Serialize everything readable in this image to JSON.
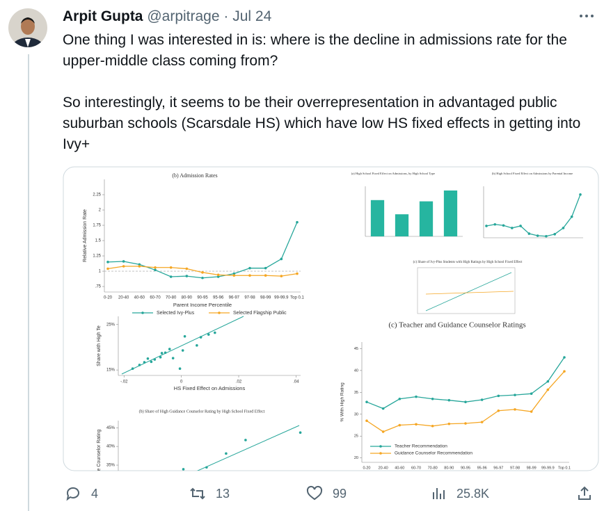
{
  "tweet": {
    "author_name": "Arpit Gupta",
    "handle": "@arpitrage",
    "separator": "·",
    "date": "Jul 24",
    "paragraphs": [
      "One thing I was interested in is: where is the decline in admissions rate for the upper-middle class coming from?",
      "So interestingly, it seems to be their overrepresentation in advantaged public suburban schools (Scarsdale HS) which have low HS fixed effects in getting into Ivy+"
    ]
  },
  "actions": {
    "replies": 4,
    "retweets": 13,
    "likes": 99,
    "views": "25.8K"
  },
  "image_texts": {
    "ivy_ratings_title": "(c) Share of Ivy-Plus Students with High Ratings by High School Fixed Effect"
  },
  "chart_data": [
    {
      "type": "line",
      "title": "(b) Admission Rates",
      "xlabel": "Parent Income Percentile",
      "ylabel": "Relative Admission Rate",
      "categories": [
        "0-20",
        "20-40",
        "40-60",
        "60-70",
        "70-80",
        "80-90",
        "90-95",
        "95-96",
        "96-97",
        "97-98",
        "98-99",
        "99-99.9",
        "Top 0.1"
      ],
      "series": [
        {
          "name": "Selected Ivy-Plus",
          "color": "#26a69a",
          "values": [
            1.15,
            1.16,
            1.11,
            1.02,
            0.91,
            0.92,
            0.89,
            0.91,
            0.96,
            1.05,
            1.05,
            1.2,
            1.8
          ]
        },
        {
          "name": "Selected Flagship Public",
          "color": "#f5a623",
          "values": [
            1.04,
            1.08,
            1.08,
            1.06,
            1.06,
            1.04,
            0.98,
            0.94,
            0.93,
            0.93,
            0.93,
            0.92,
            0.96
          ]
        }
      ],
      "ylim": [
        0.66,
        2.5
      ],
      "yticks": [
        {
          "value": 0.75,
          "label": ".75"
        },
        1,
        1.25,
        1.5,
        1.75,
        2,
        2.25
      ],
      "hline": 1,
      "legend": "bottom"
    },
    {
      "type": "scatter",
      "ylabel": "Share with High Te",
      "xlabel": "HS Fixed Effect on Admissions",
      "series": [
        {
          "color": "#26a69a",
          "x": [
            -0.017,
            -0.0146,
            -0.0129,
            -0.0117,
            -0.0105,
            -0.0093,
            -0.0073,
            -0.0068,
            -0.0056,
            -0.0041,
            -0.0029,
            -0.0005,
            0.0005,
            0.0012,
            0.0054,
            0.0068,
            0.0095,
            0.0117
          ],
          "values": [
            15.3,
            16.1,
            16.7,
            17.5,
            16.8,
            17.3,
            17.8,
            18.7,
            18.8,
            19.6,
            17.6,
            15.3,
            19.3,
            22.4,
            20.4,
            22.2,
            22.8,
            23.2
          ]
        }
      ],
      "xlim": [
        -0.022,
        0.0416
      ],
      "xticks": [
        {
          "value": -0.02,
          "label": "-.02"
        },
        0,
        {
          "value": 0.02,
          "label": ".02"
        },
        {
          "value": 0.04,
          "label": ".04"
        }
      ],
      "ylim": [
        13.8,
        26.8
      ],
      "yticks": [
        {
          "value": 15,
          "label": "15%"
        },
        {
          "value": 25,
          "label": "25%"
        }
      ]
    },
    {
      "type": "scatter",
      "title": "(b) Share of High Guidance Counselor Rating by High School Fixed Effect",
      "ylabel": "e Counselor Rating",
      "series": [
        {
          "color": "#26a69a",
          "x": [
            0.0007,
            0.0088,
            0.0156,
            0.0224,
            0.0415
          ],
          "values": [
            33.9,
            34.4,
            38.1,
            41.7,
            43.7
          ]
        }
      ],
      "xlim": [
        -0.022,
        0.0416
      ],
      "ylim": [
        31.1,
        46.9
      ],
      "yticks": [
        {
          "value": 35,
          "label": "35%"
        },
        {
          "value": 40,
          "label": "40%"
        },
        {
          "value": 45,
          "label": "45%"
        }
      ]
    },
    {
      "type": "bar",
      "title": "(a) High School Fixed Effect on Admissions, by High School Type",
      "categories": [
        null,
        null,
        null,
        null
      ],
      "values": [
        8.7,
        5.3,
        8.4,
        11.0
      ],
      "color": "#26b5a0",
      "ylim": [
        0,
        12
      ]
    },
    {
      "type": "line",
      "title": "(b) High School Fixed Effect on Admissions by Parental Income",
      "categories": [
        null,
        null,
        null,
        null,
        null,
        null,
        null,
        null,
        null,
        null,
        null,
        null
      ],
      "series": [
        {
          "color": "#26a69a",
          "values": [
            2.3,
            2.6,
            2.4,
            1.9,
            2.3,
            0.8,
            0.4,
            0.3,
            0.7,
            1.9,
            4.1,
            8.4
          ]
        }
      ],
      "ylim": [
        0,
        10
      ]
    },
    {
      "type": "line",
      "title": "(c)  Teacher and Guidance Counselor Ratings",
      "ylabel": "% With High Rating",
      "categories": [
        "0-20",
        "20-40",
        "40-60",
        "60-70",
        "70-80",
        "80-90",
        "90-95",
        "95-96",
        "96-97",
        "97-98",
        "98-99",
        "99-99.9",
        "Top 0.1"
      ],
      "series": [
        {
          "name": "Teacher Recommendation",
          "color": "#26a69a",
          "values": [
            32.8,
            31.3,
            33.5,
            34.0,
            33.5,
            33.2,
            32.8,
            33.3,
            34.2,
            34.4,
            34.7,
            37.5,
            43.0
          ]
        },
        {
          "name": "Guidance Counselor Recommendation",
          "color": "#f5a623",
          "values": [
            28.5,
            26.0,
            27.5,
            27.7,
            27.3,
            27.8,
            27.9,
            28.2,
            30.8,
            31.1,
            30.6,
            35.6,
            39.8
          ]
        }
      ],
      "ylim": [
        19,
        46.5
      ],
      "yticks": [
        20,
        25,
        30,
        35,
        40,
        45
      ],
      "legend": "lower-left"
    }
  ]
}
